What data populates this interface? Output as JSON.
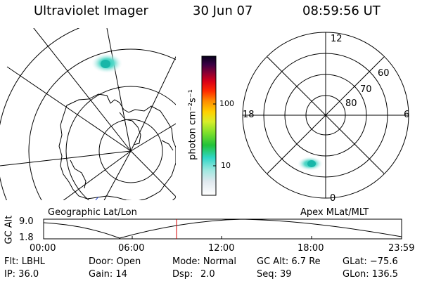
{
  "header": {
    "instrument": "Ultraviolet Imager",
    "date": "30 Jun 07",
    "time": "08:59:56 UT"
  },
  "colorbar": {
    "label": "photon cm⁻²s⁻¹",
    "ticks": [
      "100",
      "10"
    ]
  },
  "right_plot": {
    "mlt_labels": [
      "12",
      "18",
      "6",
      "0"
    ],
    "lat_labels": [
      "60",
      "70",
      "80"
    ]
  },
  "panel_labels": {
    "left": "Geographic Lat/Lon",
    "right": "Apex MLat/MLT"
  },
  "altitude_plot": {
    "ylabel": "GC Alt",
    "yticks": [
      "9.0",
      "1.8"
    ],
    "xticks": [
      "00:00",
      "06:00",
      "12:00",
      "18:00",
      "23:59"
    ]
  },
  "footer": {
    "filter": "Flt: LBHL",
    "door": "Door: Open",
    "mode": "Mode: Normal",
    "gc_alt": "GC Alt: 6.7 Re",
    "glat": "GLat: −75.6",
    "ip": "IP: 36.0",
    "gain": "Gain: 14",
    "dsp_label": "Dsp:",
    "dsp_value": "2.0",
    "seq": "Seq: 39",
    "glon": "GLon: 136.5"
  }
}
